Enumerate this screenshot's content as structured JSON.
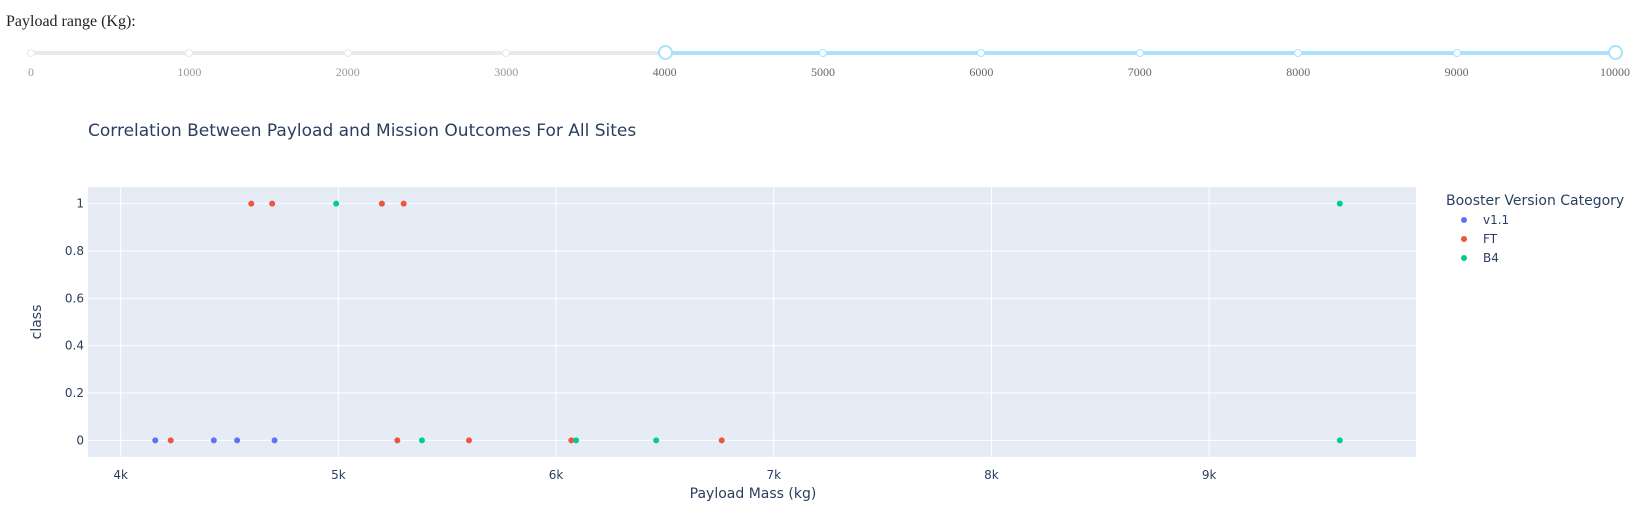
{
  "slider": {
    "label": "Payload range (Kg):",
    "min": 0,
    "max": 10000,
    "selected": [
      4000,
      10000
    ],
    "marks": [
      "0",
      "1000",
      "2000",
      "3000",
      "4000",
      "5000",
      "6000",
      "7000",
      "8000",
      "9000",
      "10000"
    ],
    "track_color": "#abe2fb",
    "rail_color": "#e9e9e9"
  },
  "chart_data": {
    "type": "scatter",
    "title": "Correlation Between Payload and Mission Outcomes For All Sites",
    "xlabel": "Payload Mass (kg)",
    "ylabel": "class",
    "xlim": [
      3850,
      9950
    ],
    "ylim": [
      -0.07,
      1.07
    ],
    "x_ticks": [
      4000,
      5000,
      6000,
      7000,
      8000,
      9000
    ],
    "x_tick_labels": [
      "4k",
      "5k",
      "6k",
      "7k",
      "8k",
      "9k"
    ],
    "y_ticks": [
      0,
      0.2,
      0.4,
      0.6,
      0.8,
      1
    ],
    "y_tick_labels": [
      "0",
      "0.2",
      "0.4",
      "0.6",
      "0.8",
      "1"
    ],
    "grid": true,
    "plot_bg": "#e5ecf6",
    "legend_title": "Booster Version Category",
    "legend_position": "right",
    "series": [
      {
        "name": "v1.1",
        "color": "#636efa",
        "points": [
          [
            4159,
            0
          ],
          [
            4428,
            0
          ],
          [
            4535,
            0
          ],
          [
            4707,
            0
          ]
        ]
      },
      {
        "name": "FT",
        "color": "#ef553b",
        "points": [
          [
            4230,
            0
          ],
          [
            4600,
            1
          ],
          [
            4696,
            1
          ],
          [
            5200,
            1
          ],
          [
            5300,
            1
          ],
          [
            5271,
            0
          ],
          [
            5600,
            0
          ],
          [
            6070,
            0
          ],
          [
            6761,
            0
          ]
        ]
      },
      {
        "name": "B4",
        "color": "#00cc96",
        "points": [
          [
            4990,
            1
          ],
          [
            5384,
            0
          ],
          [
            6092,
            0
          ],
          [
            6460,
            0
          ],
          [
            9600,
            1
          ],
          [
            9600,
            0
          ]
        ]
      }
    ]
  }
}
